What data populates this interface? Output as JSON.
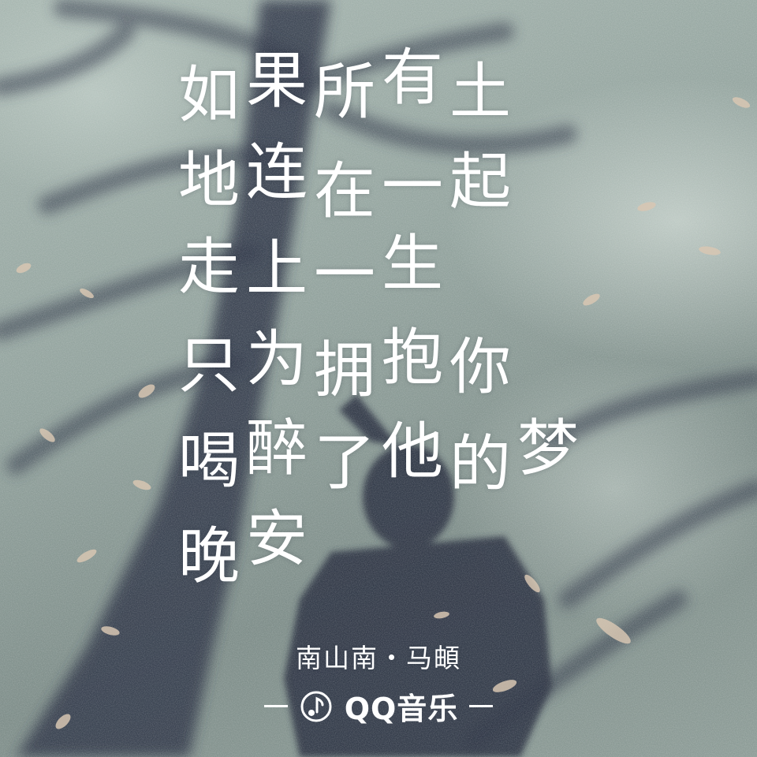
{
  "lyrics": [
    [
      "如",
      "果",
      "所",
      "有",
      "土"
    ],
    [
      "地",
      "连",
      "在",
      "一",
      "起"
    ],
    [
      "走",
      "上",
      "一",
      "生"
    ],
    [
      "只",
      "为",
      "拥",
      "抱",
      "你"
    ],
    [
      "喝",
      "醉",
      "了",
      "他",
      "的",
      "梦"
    ],
    [
      "晚",
      "安"
    ]
  ],
  "credit": {
    "artist_line": "南山南・马頔"
  },
  "brand": {
    "name": "QQ音乐",
    "left_mark": "—",
    "right_mark": "—",
    "icon": "music-note-icon"
  },
  "colors": {
    "text": "#ffffff",
    "ground": "#93a39e",
    "shadow": "#2e3445"
  }
}
